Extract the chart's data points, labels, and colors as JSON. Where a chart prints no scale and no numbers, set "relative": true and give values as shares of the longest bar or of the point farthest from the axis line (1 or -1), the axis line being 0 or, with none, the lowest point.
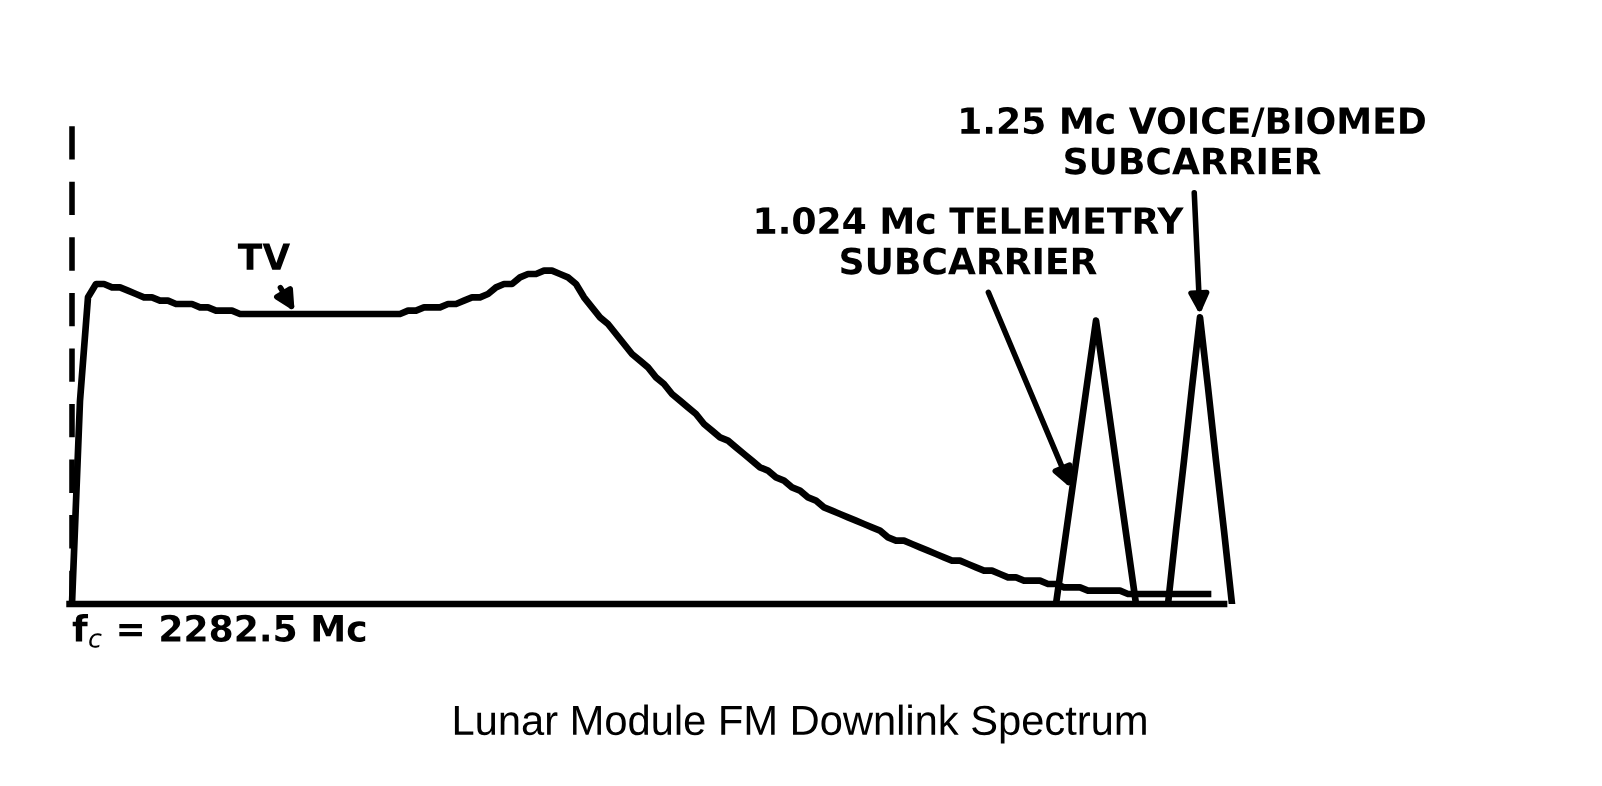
{
  "chart_data": {
    "type": "line",
    "relative": true,
    "title": "Lunar Module FM Downlink Spectrum",
    "categories": [
      null,
      null,
      null,
      null,
      null,
      null,
      null,
      null,
      null,
      null,
      null,
      null,
      null,
      null,
      null,
      null,
      null,
      null,
      null,
      null,
      null,
      null,
      null,
      null,
      null,
      null,
      null,
      null,
      null,
      null,
      null,
      null,
      null,
      null,
      null,
      null,
      null,
      null,
      null,
      null,
      null,
      null,
      null,
      null,
      null,
      null,
      null,
      null,
      null,
      null,
      null,
      null,
      null,
      null,
      null,
      null,
      null,
      null,
      null,
      null,
      null,
      null,
      null,
      null,
      null,
      null,
      null,
      null,
      null,
      null,
      null,
      null,
      null,
      null,
      null,
      null,
      null,
      null,
      null,
      null,
      null,
      null,
      null,
      null,
      null,
      null,
      null,
      null,
      null,
      null,
      null,
      null,
      null,
      null,
      null,
      null,
      null,
      null,
      null,
      null,
      null,
      null,
      null,
      null,
      null,
      null,
      null,
      null,
      null,
      null,
      null,
      null,
      null,
      null,
      null,
      null,
      null,
      null,
      null,
      null,
      null,
      null,
      null,
      null,
      null,
      null,
      null,
      null,
      null,
      null,
      null,
      null,
      null,
      null,
      null,
      null,
      null,
      null,
      null,
      null,
      null,
      null,
      null,
      null,
      null,
      null
    ],
    "series": [
      {
        "color": "#000000",
        "values": [
          0,
          0.61,
          0.92,
          0.96,
          0.96,
          0.95,
          0.95,
          0.94,
          0.93,
          0.92,
          0.92,
          0.91,
          0.91,
          0.9,
          0.9,
          0.9,
          0.89,
          0.89,
          0.88,
          0.88,
          0.88,
          0.87,
          0.87,
          0.87,
          0.87,
          0.87,
          0.87,
          0.87,
          0.87,
          0.87,
          0.87,
          0.87,
          0.87,
          0.87,
          0.87,
          0.87,
          0.87,
          0.87,
          0.87,
          0.87,
          0.87,
          0.87,
          0.88,
          0.88,
          0.89,
          0.89,
          0.89,
          0.9,
          0.9,
          0.91,
          0.92,
          0.92,
          0.93,
          0.95,
          0.96,
          0.96,
          0.98,
          0.99,
          0.99,
          1.0,
          1.0,
          0.99,
          0.98,
          0.96,
          0.92,
          0.89,
          0.86,
          0.84,
          0.81,
          0.78,
          0.75,
          0.73,
          0.71,
          0.68,
          0.66,
          0.63,
          0.61,
          0.59,
          0.57,
          0.54,
          0.52,
          0.5,
          0.49,
          0.47,
          0.45,
          0.43,
          0.41,
          0.4,
          0.38,
          0.37,
          0.35,
          0.34,
          0.32,
          0.31,
          0.29,
          0.28,
          0.27,
          0.26,
          0.25,
          0.24,
          0.23,
          0.22,
          0.2,
          0.19,
          0.19,
          0.18,
          0.17,
          0.16,
          0.15,
          0.14,
          0.13,
          0.13,
          0.12,
          0.11,
          0.1,
          0.1,
          0.09,
          0.08,
          0.08,
          0.07,
          0.07,
          0.07,
          0.06,
          0.06,
          0.05,
          0.05,
          0.05,
          0.04,
          0.04,
          0.04,
          0.04,
          0.04,
          0.03,
          0.03,
          0.03,
          0.03,
          0.03,
          0.03,
          0.03,
          0.03,
          0.03,
          0.03,
          0.03,
          null,
          null,
          null
        ]
      },
      {
        "color": "#000000",
        "values": [
          null,
          null,
          null,
          null,
          null,
          null,
          null,
          null,
          null,
          null,
          null,
          null,
          null,
          null,
          null,
          null,
          null,
          null,
          null,
          null,
          null,
          null,
          null,
          null,
          null,
          null,
          null,
          null,
          null,
          null,
          null,
          null,
          null,
          null,
          null,
          null,
          null,
          null,
          null,
          null,
          null,
          null,
          null,
          null,
          null,
          null,
          null,
          null,
          null,
          null,
          null,
          null,
          null,
          null,
          null,
          null,
          null,
          null,
          null,
          null,
          null,
          null,
          null,
          null,
          null,
          null,
          null,
          null,
          null,
          null,
          null,
          null,
          null,
          null,
          null,
          null,
          null,
          null,
          null,
          null,
          null,
          null,
          null,
          null,
          null,
          null,
          null,
          null,
          null,
          null,
          null,
          null,
          null,
          null,
          null,
          null,
          null,
          null,
          null,
          null,
          null,
          null,
          null,
          null,
          null,
          null,
          null,
          null,
          null,
          null,
          null,
          null,
          null,
          null,
          null,
          null,
          null,
          null,
          null,
          null,
          null,
          null,
          null,
          0,
          0.17,
          0.34,
          0.51,
          0.68,
          0.85,
          0.68,
          0.51,
          0.34,
          0.17,
          0,
          null,
          null,
          null,
          null,
          null,
          null,
          null,
          null,
          null,
          null,
          null,
          null
        ]
      },
      {
        "color": "#000000",
        "values": [
          null,
          null,
          null,
          null,
          null,
          null,
          null,
          null,
          null,
          null,
          null,
          null,
          null,
          null,
          null,
          null,
          null,
          null,
          null,
          null,
          null,
          null,
          null,
          null,
          null,
          null,
          null,
          null,
          null,
          null,
          null,
          null,
          null,
          null,
          null,
          null,
          null,
          null,
          null,
          null,
          null,
          null,
          null,
          null,
          null,
          null,
          null,
          null,
          null,
          null,
          null,
          null,
          null,
          null,
          null,
          null,
          null,
          null,
          null,
          null,
          null,
          null,
          null,
          null,
          null,
          null,
          null,
          null,
          null,
          null,
          null,
          null,
          null,
          null,
          null,
          null,
          null,
          null,
          null,
          null,
          null,
          null,
          null,
          null,
          null,
          null,
          null,
          null,
          null,
          null,
          null,
          null,
          null,
          null,
          null,
          null,
          null,
          null,
          null,
          null,
          null,
          null,
          null,
          null,
          null,
          null,
          null,
          null,
          null,
          null,
          null,
          null,
          null,
          null,
          null,
          null,
          null,
          null,
          null,
          null,
          null,
          null,
          null,
          null,
          null,
          null,
          null,
          null,
          null,
          null,
          null,
          null,
          null,
          null,
          null,
          null,
          null,
          0,
          0.22,
          0.43,
          0.65,
          0.86,
          0.65,
          0.43,
          0.22,
          0
        ]
      }
    ],
    "annotations": [
      "TV",
      "1.024 Mc TELEMETRY\nSUBCARRIER",
      "1.25 Mc VOICE/BIOMED\nSUBCARRIER",
      "f$_{c}$ = 2282.5 Mc"
    ],
    "grid": false,
    "legend": false
  }
}
